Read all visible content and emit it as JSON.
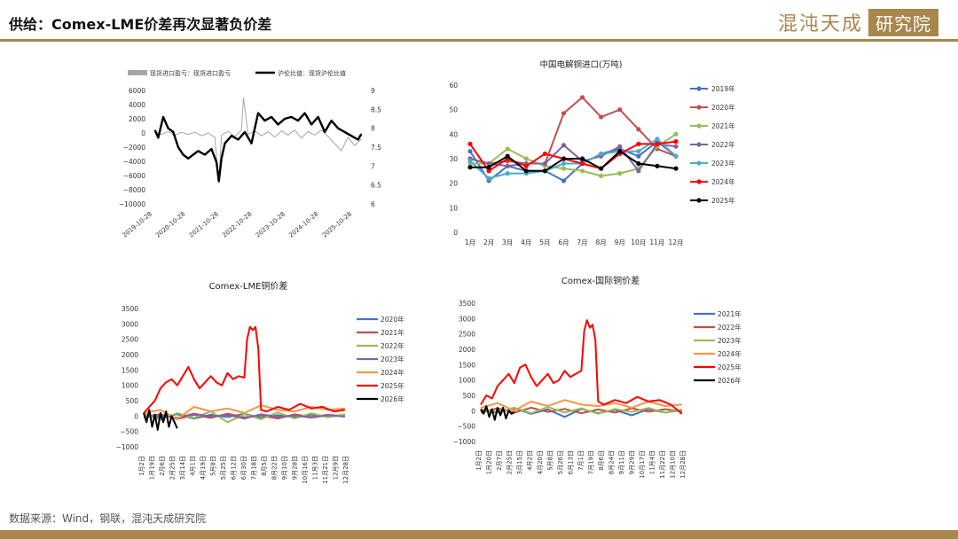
{
  "header": {
    "title": "供给：Comex-LME价差再次显著负价差"
  },
  "logo": {
    "text": "混沌天成",
    "box": "研究院"
  },
  "footer": {
    "source": "数据来源：Wind，钢联，混沌天成研究院"
  },
  "colors": {
    "gold": "#a8864c"
  },
  "chart_data": [
    {
      "type": "line",
      "title": "",
      "legend": [
        "现货进口盈亏：现货进口盈亏",
        "沪伦比值：现货沪伦比值"
      ],
      "legend_placement": "top",
      "x_ticks": [
        "2019-10-28",
        "2020-10-28",
        "2021-10-28",
        "2022-10-28",
        "2023-10-28",
        "2024-10-28",
        "2025-10-28"
      ],
      "y_left_ticks": [
        "6000",
        "4000",
        "2000",
        "0",
        "−2000",
        "−4000",
        "−6000",
        "−8000",
        "−10000"
      ],
      "y_right_ticks": [
        "9",
        "8.5",
        "8",
        "7.5",
        "7",
        "6.5",
        "6"
      ],
      "ylim_left": [
        -10000,
        6000
      ],
      "ylim_right": [
        6,
        9
      ],
      "series": [
        {
          "name": "现货进口盈亏：现货进口盈亏",
          "axis": "left",
          "color": "#a6a6a6",
          "x": [
            2019.9,
            2020.1,
            2020.3,
            2020.5,
            2020.7,
            2020.9,
            2021.1,
            2021.3,
            2021.5,
            2021.7,
            2021.82,
            2021.9,
            2022.1,
            2022.3,
            2022.5,
            2022.56,
            2022.7,
            2022.9,
            2023.1,
            2023.3,
            2023.5,
            2023.7,
            2023.9,
            2024.1,
            2024.3,
            2024.5,
            2024.7,
            2024.9,
            2025.1,
            2025.3,
            2025.5,
            2025.7,
            2025.9,
            2026.1
          ],
          "y": [
            300,
            -200,
            200,
            -300,
            100,
            -200,
            100,
            -400,
            0,
            -600,
            -7000,
            -300,
            200,
            -500,
            400,
            5000,
            -200,
            300,
            -400,
            200,
            -600,
            300,
            -300,
            400,
            -700,
            200,
            -300,
            400,
            -500,
            -1500,
            -2500,
            -600,
            -1800,
            -800
          ]
        },
        {
          "name": "沪伦比值：现货沪伦比值",
          "axis": "right",
          "color": "#000000",
          "x": [
            2019.9,
            2020.0,
            2020.15,
            2020.3,
            2020.45,
            2020.6,
            2020.75,
            2020.9,
            2021.05,
            2021.2,
            2021.4,
            2021.6,
            2021.75,
            2021.82,
            2021.9,
            2022.0,
            2022.2,
            2022.4,
            2022.6,
            2022.8,
            2023.0,
            2023.2,
            2023.4,
            2023.6,
            2023.8,
            2024.0,
            2024.2,
            2024.4,
            2024.6,
            2024.8,
            2025.0,
            2025.2,
            2025.4,
            2025.6,
            2025.8,
            2026.0,
            2026.1
          ],
          "y": [
            7.95,
            7.75,
            8.3,
            8.0,
            7.9,
            7.5,
            7.3,
            7.2,
            7.3,
            7.4,
            7.3,
            7.45,
            7.1,
            6.6,
            7.2,
            7.6,
            7.8,
            7.7,
            7.9,
            7.6,
            8.4,
            8.2,
            8.3,
            8.1,
            8.25,
            8.3,
            8.2,
            8.4,
            8.1,
            8.3,
            7.9,
            8.2,
            8.0,
            7.9,
            7.8,
            7.7,
            7.85
          ]
        }
      ]
    },
    {
      "type": "line",
      "title": "中国电解铜进口(万吨)",
      "legend_placement": "right",
      "categories": [
        "1月",
        "2月",
        "3月",
        "4月",
        "5月",
        "6月",
        "7月",
        "8月",
        "9月",
        "10月",
        "11月",
        "12月"
      ],
      "y_ticks": [
        "60",
        "50",
        "40",
        "30",
        "20",
        "10",
        "0"
      ],
      "ylim": [
        0,
        60
      ],
      "series": [
        {
          "name": "2019年",
          "color": "#4472c4",
          "values": [
            33,
            21,
            27,
            25,
            25,
            21,
            28,
            32,
            34,
            31,
            37,
            31
          ]
        },
        {
          "name": "2020年",
          "color": "#c0504d",
          "values": [
            30,
            28,
            29,
            28,
            28,
            48.5,
            55,
            47,
            50,
            42,
            34,
            31
          ]
        },
        {
          "name": "2021年",
          "color": "#9bbb59",
          "values": [
            28,
            28,
            34,
            30,
            27,
            26,
            25,
            23,
            24,
            26,
            35,
            40
          ]
        },
        {
          "name": "2022年",
          "color": "#8064a2",
          "values": [
            30,
            28,
            27,
            28,
            28,
            35.5,
            29,
            31,
            35,
            25,
            36,
            35
          ]
        },
        {
          "name": "2023年",
          "color": "#4bacc6",
          "values": [
            29,
            22,
            24,
            24,
            25,
            28,
            28,
            32,
            33,
            33,
            38,
            31
          ]
        },
        {
          "name": "2024年",
          "color": "#ff0000",
          "values": [
            36,
            25,
            30,
            27,
            32,
            30,
            28,
            26,
            32,
            36,
            36,
            37
          ]
        },
        {
          "name": "2025年",
          "color": "#000000",
          "values": [
            26.5,
            26.5,
            31,
            25,
            25,
            30,
            30,
            26,
            33,
            28,
            27,
            26
          ]
        }
      ]
    },
    {
      "type": "line",
      "title": "Comex-LME铜价差",
      "legend_placement": "right",
      "x_ticks": [
        "1月2日",
        "1月19日",
        "2月6日",
        "2月25日",
        "3月14日",
        "4月1日",
        "4月19日",
        "5月8日",
        "5月25日",
        "6月12日",
        "6月30日",
        "7月18日",
        "8月5日",
        "8月22日",
        "9月10日",
        "9月28日",
        "10月16日",
        "11月3日",
        "11月21日",
        "12月9日",
        "12月28日"
      ],
      "y_ticks": [
        "3500",
        "3000",
        "2500",
        "2000",
        "1500",
        "1000",
        "500",
        "0",
        "−500",
        "−1000"
      ],
      "ylim": [
        -1000,
        3500
      ],
      "series": [
        {
          "name": "2020年",
          "color": "#4472c4",
          "x": [
            0,
            30,
            60,
            90,
            120,
            150,
            180,
            210,
            240,
            270,
            300,
            330,
            360
          ],
          "y": [
            50,
            -50,
            60,
            -80,
            40,
            -30,
            70,
            -60,
            30,
            -40,
            50,
            -20,
            30
          ]
        },
        {
          "name": "2021年",
          "color": "#c0504d",
          "x": [
            0,
            30,
            60,
            90,
            120,
            150,
            180,
            210,
            240,
            270,
            300,
            330,
            360
          ],
          "y": [
            -20,
            60,
            -100,
            40,
            -60,
            80,
            -40,
            20,
            -80,
            60,
            -30,
            40,
            -10
          ]
        },
        {
          "name": "2022年",
          "color": "#9bbb59",
          "x": [
            0,
            30,
            60,
            90,
            120,
            150,
            180,
            210,
            240,
            270,
            300,
            330,
            360
          ],
          "y": [
            80,
            -120,
            100,
            -60,
            150,
            -200,
            60,
            -100,
            120,
            -80,
            90,
            -40,
            60
          ]
        },
        {
          "name": "2023年",
          "color": "#8064a2",
          "x": [
            0,
            30,
            60,
            90,
            120,
            150,
            180,
            210,
            240,
            270,
            300,
            330,
            360
          ],
          "y": [
            -40,
            30,
            -60,
            80,
            -20,
            40,
            -80,
            60,
            -30,
            20,
            -50,
            30,
            -20
          ]
        },
        {
          "name": "2024年",
          "color": "#f79646",
          "x": [
            0,
            30,
            60,
            90,
            120,
            150,
            180,
            210,
            240,
            270,
            300,
            330,
            360
          ],
          "y": [
            100,
            200,
            -100,
            300,
            150,
            250,
            100,
            350,
            200,
            150,
            300,
            200,
            250
          ]
        },
        {
          "name": "2025年",
          "color": "#ff0000",
          "x": [
            0,
            10,
            20,
            30,
            40,
            50,
            60,
            70,
            80,
            90,
            100,
            110,
            120,
            130,
            140,
            150,
            160,
            170,
            180,
            185,
            190,
            195,
            200,
            205,
            210,
            220,
            240,
            260,
            280,
            300,
            320,
            340,
            360
          ],
          "y": [
            100,
            300,
            500,
            900,
            1100,
            1200,
            1000,
            1300,
            1600,
            1200,
            900,
            1100,
            1300,
            1100,
            1000,
            1400,
            1200,
            1300,
            1250,
            2500,
            2900,
            2800,
            2900,
            2200,
            200,
            150,
            300,
            200,
            400,
            250,
            300,
            150,
            200
          ]
        },
        {
          "name": "2026年",
          "color": "#000000",
          "x": [
            0,
            5,
            10,
            15,
            20,
            25,
            30,
            35,
            40,
            45,
            50,
            55,
            60
          ],
          "y": [
            100,
            -200,
            200,
            -350,
            50,
            -450,
            100,
            -200,
            150,
            -350,
            0,
            -200,
            -400
          ]
        }
      ]
    },
    {
      "type": "line",
      "title": "Comex-国际铜价差",
      "legend_placement": "right",
      "x_ticks": [
        "1月2日",
        "1月20日",
        "2月7日",
        "2月25日",
        "3月15日",
        "4月2日",
        "4月20日",
        "5月8日",
        "5月26日",
        "6月13日",
        "7月1日",
        "7月19日",
        "8月6日",
        "8月24日",
        "9月11日",
        "9月29日",
        "10月17日",
        "11月4日",
        "11月22日",
        "12月10日",
        "12月28日"
      ],
      "y_ticks": [
        "3500",
        "3000",
        "2500",
        "2000",
        "1500",
        "1000",
        "500",
        "0",
        "−500",
        "−1000"
      ],
      "ylim": [
        -1000,
        3500
      ],
      "series": [
        {
          "name": "2021年",
          "color": "#4472c4",
          "x": [
            0,
            30,
            60,
            90,
            120,
            150,
            180,
            210,
            240,
            270,
            300,
            330,
            360
          ],
          "y": [
            20,
            -60,
            80,
            -100,
            40,
            -200,
            60,
            -80,
            30,
            -150,
            50,
            -60,
            20
          ]
        },
        {
          "name": "2022年",
          "color": "#c0504d",
          "x": [
            0,
            30,
            60,
            90,
            120,
            150,
            180,
            210,
            240,
            270,
            300,
            330,
            360
          ],
          "y": [
            -50,
            80,
            -60,
            100,
            -40,
            60,
            -80,
            40,
            -60,
            80,
            -30,
            50,
            -20
          ]
        },
        {
          "name": "2023年",
          "color": "#9bbb59",
          "x": [
            0,
            30,
            60,
            90,
            120,
            150,
            180,
            210,
            240,
            270,
            300,
            330,
            360
          ],
          "y": [
            60,
            -40,
            100,
            -80,
            120,
            -60,
            80,
            -100,
            60,
            -40,
            90,
            -60,
            40
          ]
        },
        {
          "name": "2024年",
          "color": "#f79646",
          "x": [
            0,
            30,
            60,
            90,
            120,
            150,
            180,
            210,
            240,
            270,
            300,
            330,
            360
          ],
          "y": [
            100,
            250,
            0,
            300,
            150,
            350,
            200,
            150,
            250,
            100,
            300,
            150,
            200
          ]
        },
        {
          "name": "2025年",
          "color": "#ff0000",
          "x": [
            0,
            10,
            20,
            30,
            40,
            50,
            60,
            70,
            80,
            90,
            100,
            110,
            120,
            130,
            140,
            150,
            160,
            170,
            180,
            185,
            190,
            195,
            200,
            205,
            210,
            220,
            240,
            260,
            280,
            300,
            320,
            340,
            360
          ],
          "y": [
            200,
            500,
            400,
            800,
            1000,
            1200,
            900,
            1400,
            1500,
            1100,
            800,
            1000,
            1200,
            900,
            1000,
            1300,
            1100,
            1200,
            1300,
            2600,
            2950,
            2700,
            2800,
            2300,
            300,
            200,
            350,
            250,
            450,
            300,
            350,
            200,
            -100
          ]
        },
        {
          "name": "2026年",
          "color": "#000000",
          "x": [
            0,
            5,
            10,
            15,
            20,
            25,
            30,
            35,
            40,
            45,
            50,
            55,
            60
          ],
          "y": [
            50,
            -100,
            150,
            -200,
            50,
            -300,
            100,
            -150,
            100,
            -250,
            0,
            -100,
            -50
          ]
        }
      ]
    }
  ]
}
